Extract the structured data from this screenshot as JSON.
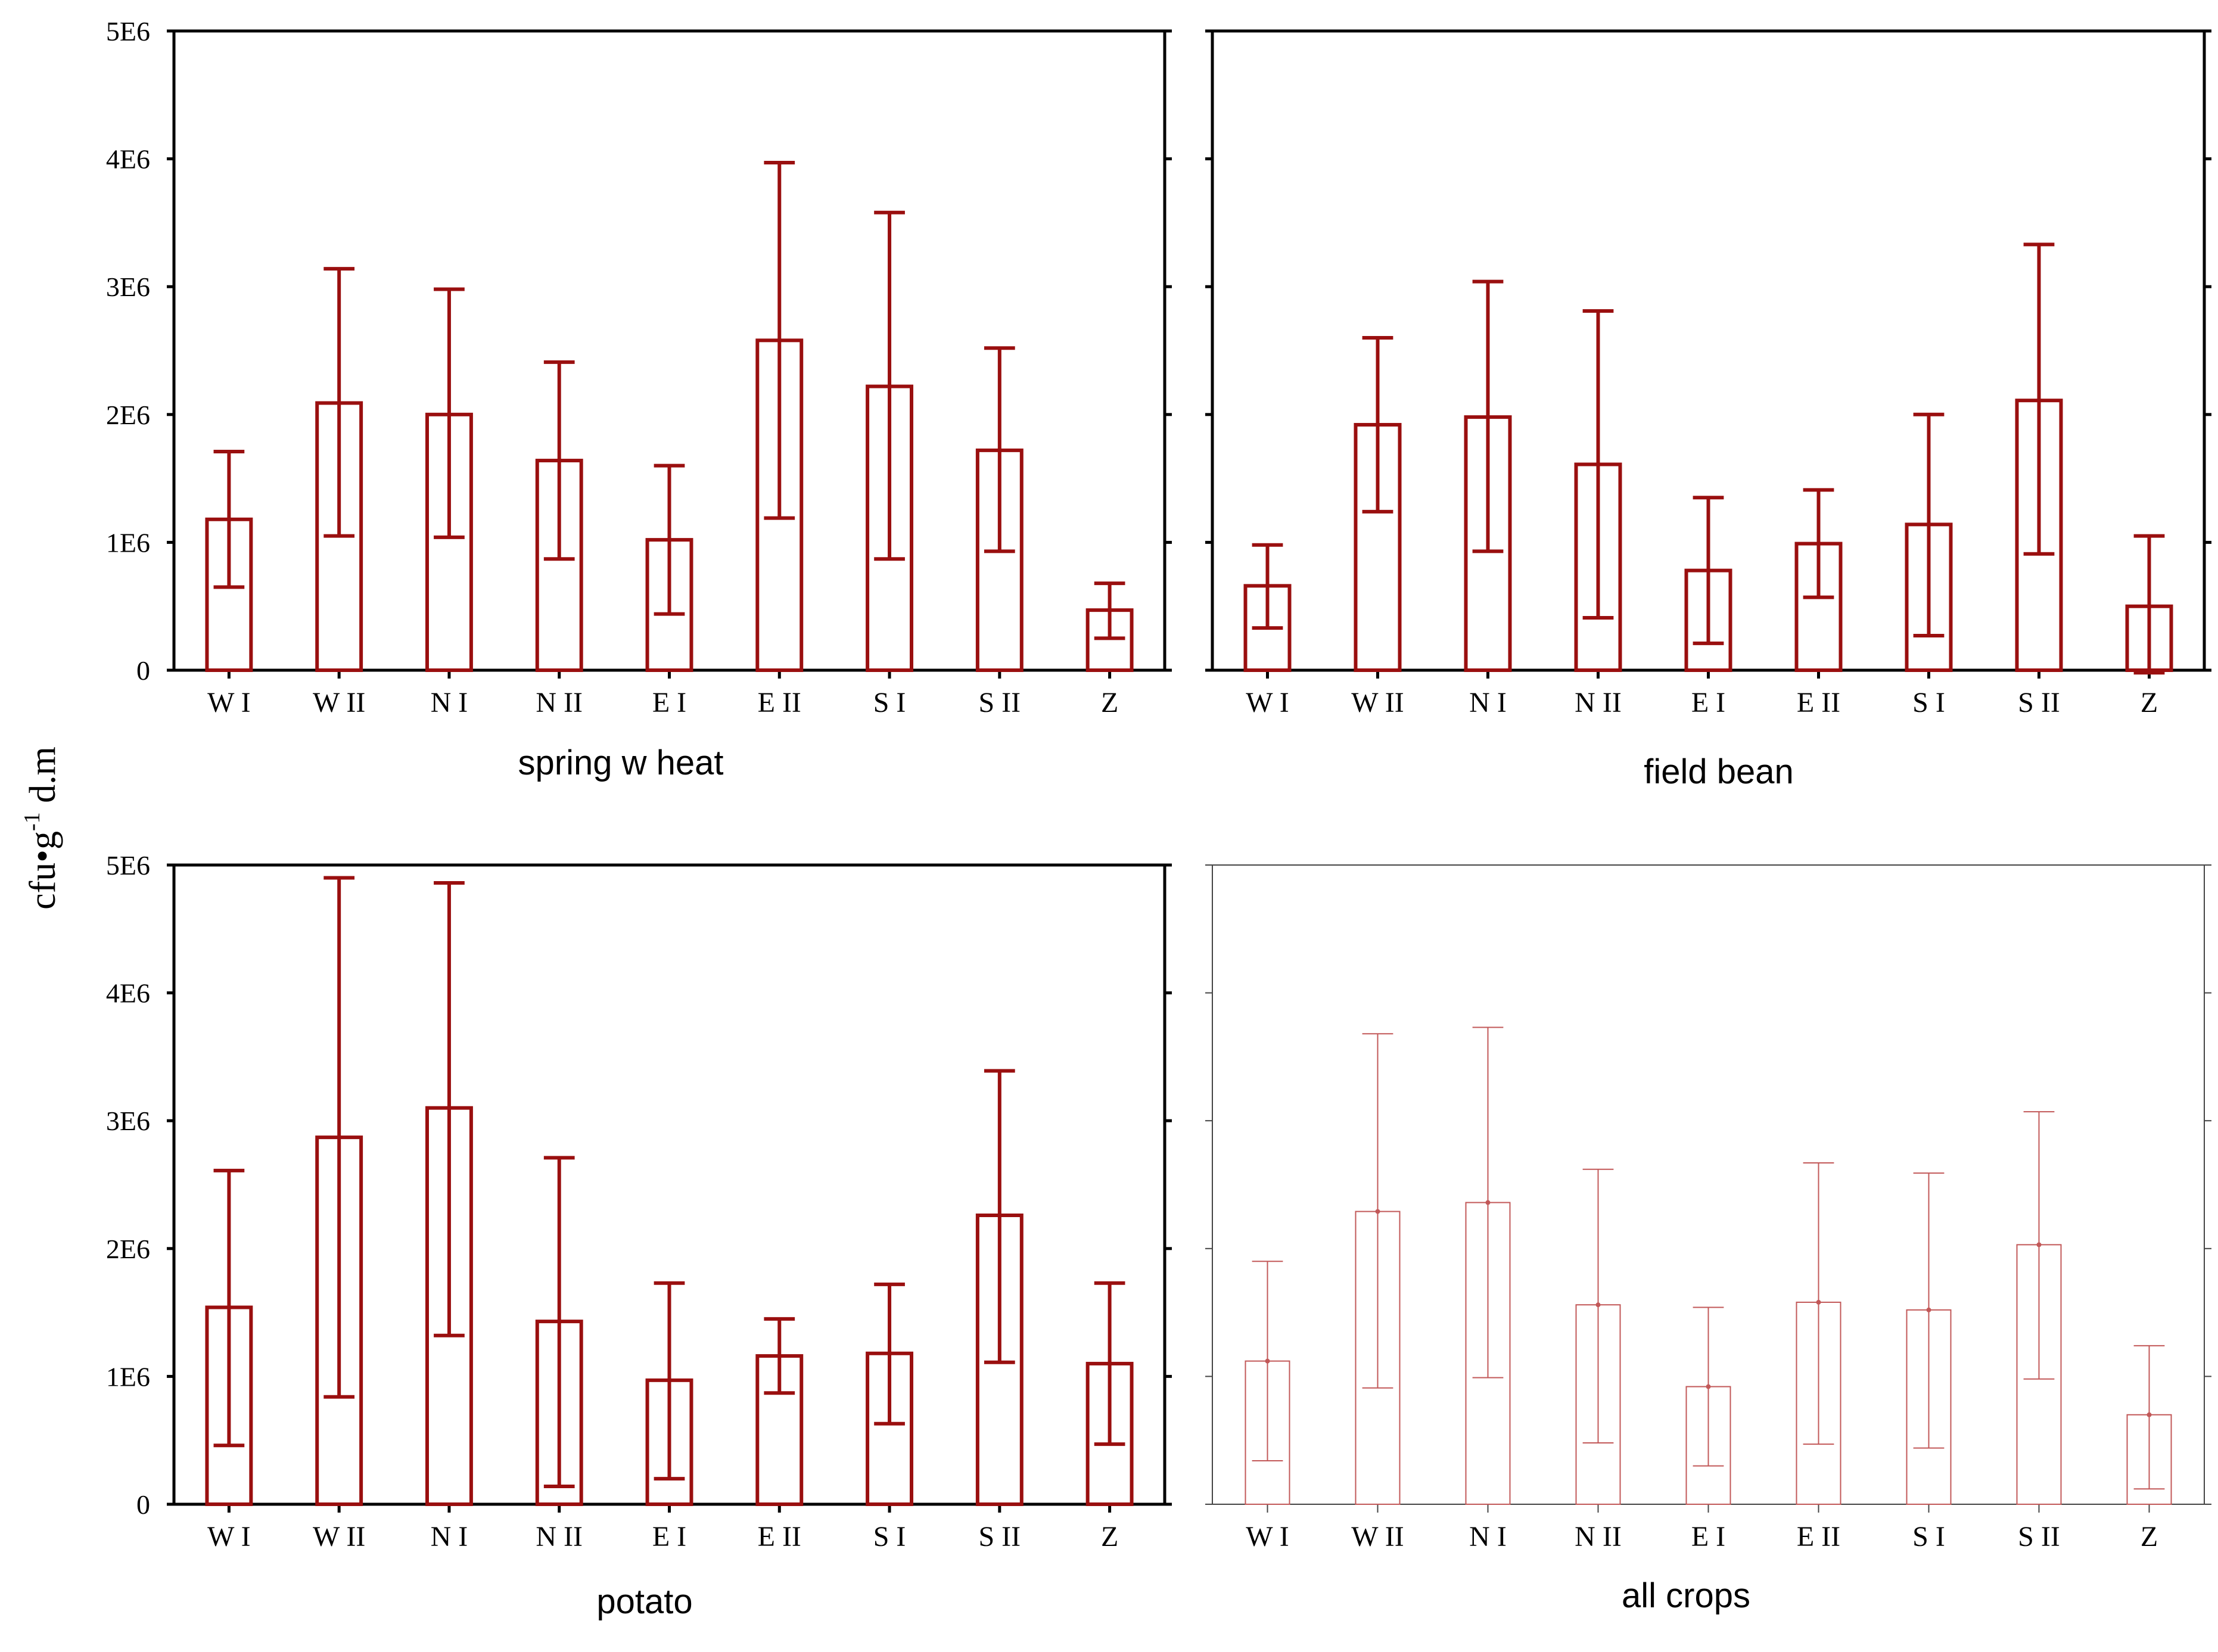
{
  "figure": {
    "y_axis_label": "cfu•g",
    "y_axis_label_sup": "-1",
    "y_axis_label_suffix": " d.m"
  },
  "chart_data": [
    {
      "type": "bar",
      "title": "spring w heat",
      "categories": [
        "W I",
        "W II",
        "N I",
        "N II",
        "E I",
        "E II",
        "S I",
        "S II",
        "Z"
      ],
      "values": [
        1180000,
        2090000,
        2000000,
        1640000,
        1020000,
        2580000,
        2220000,
        1720000,
        470000
      ],
      "error_low": [
        650000,
        1050000,
        1040000,
        870000,
        440000,
        1190000,
        870000,
        930000,
        250000
      ],
      "error_high": [
        1710000,
        3140000,
        2980000,
        2410000,
        1600000,
        3970000,
        3580000,
        2520000,
        680000
      ],
      "ylim": [
        0,
        5000000
      ],
      "yticks": [
        "0",
        "1E6",
        "2E6",
        "3E6",
        "4E6",
        "5E6"
      ],
      "xlabel": "",
      "ylabel": "",
      "color": "#9a0f0f"
    },
    {
      "type": "bar",
      "title": "field bean",
      "categories": [
        "W I",
        "W II",
        "N I",
        "N II",
        "E I",
        "E II",
        "S I",
        "S II",
        "Z"
      ],
      "values": [
        660000,
        1920000,
        1980000,
        1610000,
        780000,
        990000,
        1140000,
        2110000,
        500000
      ],
      "error_low": [
        330000,
        1240000,
        930000,
        410000,
        210000,
        570000,
        270000,
        910000,
        -20000
      ],
      "error_high": [
        980000,
        2600000,
        3040000,
        2810000,
        1350000,
        1410000,
        2000000,
        3330000,
        1050000
      ],
      "ylim": [
        0,
        5000000
      ],
      "yticks": [],
      "xlabel": "",
      "ylabel": "",
      "color": "#9a0f0f"
    },
    {
      "type": "bar",
      "title": "potato",
      "categories": [
        "W I",
        "W II",
        "N I",
        "N II",
        "E I",
        "E II",
        "S I",
        "S II",
        "Z"
      ],
      "values": [
        1540000,
        2870000,
        3100000,
        1430000,
        970000,
        1160000,
        1180000,
        2260000,
        1100000
      ],
      "error_low": [
        460000,
        840000,
        1320000,
        140000,
        200000,
        870000,
        630000,
        1110000,
        470000
      ],
      "error_high": [
        2610000,
        4900000,
        4860000,
        2710000,
        1730000,
        1450000,
        1720000,
        3390000,
        1730000
      ],
      "ylim": [
        0,
        5000000
      ],
      "yticks": [
        "0",
        "1E6",
        "2E6",
        "3E6",
        "4E6",
        "5E6"
      ],
      "xlabel": "",
      "ylabel": "",
      "color": "#9a0f0f"
    },
    {
      "type": "bar",
      "title": "all crops",
      "categories": [
        "W I",
        "W II",
        "N I",
        "N II",
        "E I",
        "E II",
        "S I",
        "S II",
        "Z"
      ],
      "values": [
        1120000,
        2290000,
        2360000,
        1560000,
        920000,
        1580000,
        1520000,
        2030000,
        700000
      ],
      "error_low": [
        340000,
        910000,
        990000,
        480000,
        300000,
        470000,
        440000,
        980000,
        120000
      ],
      "error_high": [
        1900000,
        3680000,
        3730000,
        2620000,
        1540000,
        2670000,
        2590000,
        3070000,
        1240000
      ],
      "ylim": [
        0,
        5000000
      ],
      "yticks": [],
      "xlabel": "",
      "ylabel": "",
      "color": "#c25858"
    }
  ]
}
